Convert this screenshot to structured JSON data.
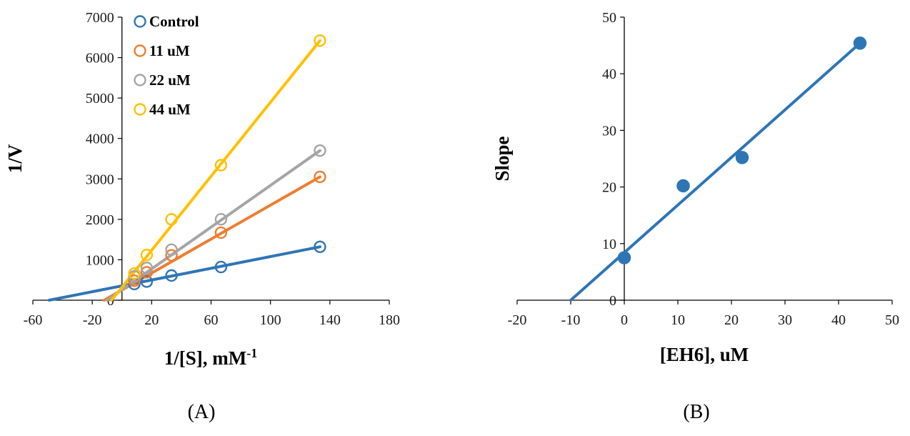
{
  "chart_data": [
    {
      "type": "scatter",
      "panel_label": "(A)",
      "panel_letter": "A",
      "xlabel": "1/[S], mM",
      "xlabel_superscript": "-1",
      "ylabel": "1/V",
      "xlim": [
        -60,
        180
      ],
      "ylim": [
        0,
        7000
      ],
      "xticks": [
        -60,
        -20,
        20,
        60,
        100,
        140,
        180
      ],
      "xtick_labels": [
        "-60",
        "-20",
        "20",
        "60",
        "100",
        "140",
        "180"
      ],
      "yticks": [
        0,
        1000,
        2000,
        3000,
        4000,
        5000,
        6000,
        7000
      ],
      "ytick_labels": [
        "0",
        "1000",
        "2000",
        "3000",
        "4000",
        "5000",
        "6000",
        "7000"
      ],
      "grid": false,
      "legend_position": "top-left",
      "series": [
        {
          "name": "Control",
          "color": "#2E75B6",
          "marker": "open-circle",
          "x": [
            8.33,
            16.67,
            33.33,
            66.67,
            133.33
          ],
          "y": [
            400,
            460,
            610,
            820,
            1320
          ],
          "fit": {
            "x": [
              -49,
              133.33
            ],
            "y": [
              0,
              1320
            ]
          }
        },
        {
          "name": "11 uM",
          "color": "#ED7D31",
          "marker": "open-circle",
          "x": [
            8.33,
            16.67,
            33.33,
            66.67,
            133.33
          ],
          "y": [
            480,
            690,
            1110,
            1670,
            3050
          ],
          "fit": {
            "x": [
              -12,
              133.33
            ],
            "y": [
              0,
              3050
            ]
          }
        },
        {
          "name": "22 uM",
          "color": "#A5A5A5",
          "marker": "open-circle",
          "x": [
            8.33,
            16.67,
            33.33,
            66.67,
            133.33
          ],
          "y": [
            590,
            800,
            1250,
            2000,
            3700
          ],
          "fit": {
            "x": [
              -10,
              133.33
            ],
            "y": [
              0,
              3700
            ]
          }
        },
        {
          "name": "44 uM",
          "color": "#FFC000",
          "marker": "open-circle",
          "x": [
            8.33,
            16.67,
            33.33,
            66.67,
            133.33
          ],
          "y": [
            660,
            1120,
            2000,
            3340,
            6420
          ],
          "fit": {
            "x": [
              -7,
              133.33
            ],
            "y": [
              0,
              6420
            ]
          }
        }
      ]
    },
    {
      "type": "scatter",
      "panel_label": "(B)",
      "panel_letter": "B",
      "xlabel": "[EH6], uM",
      "ylabel": "Slope",
      "xlim": [
        -20,
        50
      ],
      "ylim": [
        0,
        50
      ],
      "xticks": [
        -20,
        -10,
        0,
        10,
        20,
        30,
        40,
        50
      ],
      "xtick_labels": [
        "-20",
        "-10",
        "0",
        "10",
        "20",
        "30",
        "40",
        "50"
      ],
      "yticks": [
        0,
        10,
        20,
        30,
        40,
        50
      ],
      "ytick_labels": [
        "0",
        "10",
        "20",
        "30",
        "40",
        "50"
      ],
      "grid": false,
      "series": [
        {
          "name": "Slope",
          "color": "#2E75B6",
          "marker": "filled-circle",
          "x": [
            0,
            11,
            22,
            44
          ],
          "y": [
            7.5,
            20.2,
            25.2,
            45.4
          ],
          "fit": {
            "x": [
              -10,
              44
            ],
            "y": [
              0,
              45.4
            ]
          }
        }
      ]
    }
  ]
}
